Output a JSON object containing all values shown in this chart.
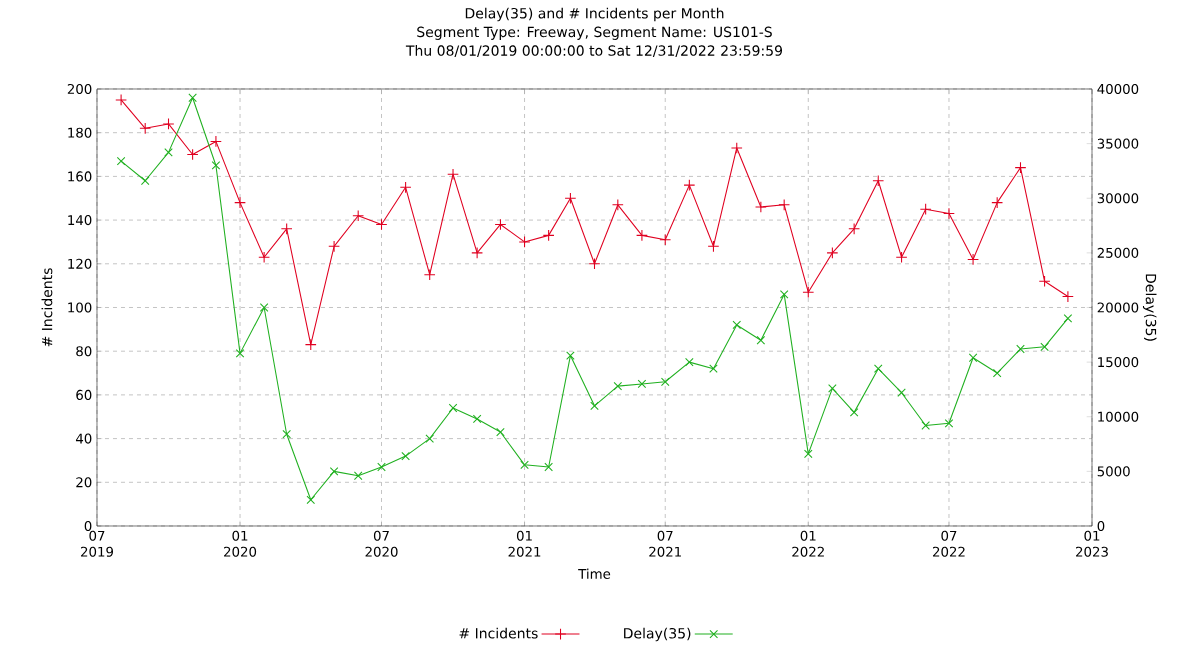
{
  "chart_data": {
    "type": "line",
    "title": "Delay(35) and # Incidents per Month",
    "subtitle": "Segment Type: Freeway, Segment Name: US101-S",
    "annotations": [
      "Thu 08/01/2019 00:00:00 to Sat 12/31/2022 23:59:59"
    ],
    "xlabel": "Time",
    "ylabel": "# Incidents",
    "y2label": "Delay(35)",
    "x": [
      "2019-08",
      "2019-09",
      "2019-10",
      "2019-11",
      "2019-12",
      "2020-01",
      "2020-02",
      "2020-03",
      "2020-04",
      "2020-05",
      "2020-06",
      "2020-07",
      "2020-08",
      "2020-09",
      "2020-10",
      "2020-11",
      "2020-12",
      "2021-01",
      "2021-02",
      "2021-03",
      "2021-04",
      "2021-05",
      "2021-06",
      "2021-07",
      "2021-08",
      "2021-09",
      "2021-10",
      "2021-11",
      "2021-12",
      "2022-01",
      "2022-02",
      "2022-03",
      "2022-04",
      "2022-05",
      "2022-06",
      "2022-07",
      "2022-08",
      "2022-09",
      "2022-10",
      "2022-11",
      "2022-12"
    ],
    "series": [
      {
        "name": "# Incidents",
        "color": "#e00020",
        "marker": "cross",
        "values": [
          195,
          182,
          184,
          170,
          176,
          148,
          123,
          136,
          83,
          128,
          142,
          138,
          155,
          115,
          161,
          125,
          138,
          130,
          133,
          150,
          120,
          147,
          133,
          131,
          156,
          128,
          173,
          146,
          147,
          107,
          125,
          136,
          158,
          123,
          145,
          143,
          122,
          148,
          164,
          112,
          105
        ]
      },
      {
        "name": "Delay(35)",
        "color": "#20b020",
        "marker": "cross",
        "axis": "y2",
        "values": [
          33400,
          31600,
          34200,
          39200,
          33000,
          15800,
          20000,
          8400,
          2400,
          5000,
          4600,
          5400,
          6400,
          8000,
          10800,
          9800,
          8600,
          5600,
          5400,
          15600,
          11000,
          12800,
          13000,
          13200,
          15000,
          14400,
          18400,
          17000,
          21200,
          6600,
          12600,
          10400,
          14400,
          12200,
          9200,
          9400,
          15400,
          14000,
          16200,
          16400,
          19000
        ]
      }
    ],
    "xlim": [
      "2019-07-01",
      "2023-01-01"
    ],
    "xticks": [
      {
        "value": "2019-07-01",
        "label": "07 2019"
      },
      {
        "value": "2020-01-01",
        "label": "01 2020"
      },
      {
        "value": "2020-07-01",
        "label": "07 2020"
      },
      {
        "value": "2021-01-01",
        "label": "01 2021"
      },
      {
        "value": "2021-07-01",
        "label": "07 2021"
      },
      {
        "value": "2022-01-01",
        "label": "01 2022"
      },
      {
        "value": "2022-07-01",
        "label": "07 2022"
      },
      {
        "value": "2023-01-01",
        "label": "01 2023"
      }
    ],
    "ylim": [
      0,
      200
    ],
    "yticks": [
      0,
      20,
      40,
      60,
      80,
      100,
      120,
      140,
      160,
      180,
      200
    ],
    "y2lim": [
      0,
      40000
    ],
    "y2ticks": [
      0,
      5000,
      10000,
      15000,
      20000,
      25000,
      30000,
      35000,
      40000
    ],
    "grid": true,
    "legend": "bottom",
    "line_style": "solid"
  }
}
